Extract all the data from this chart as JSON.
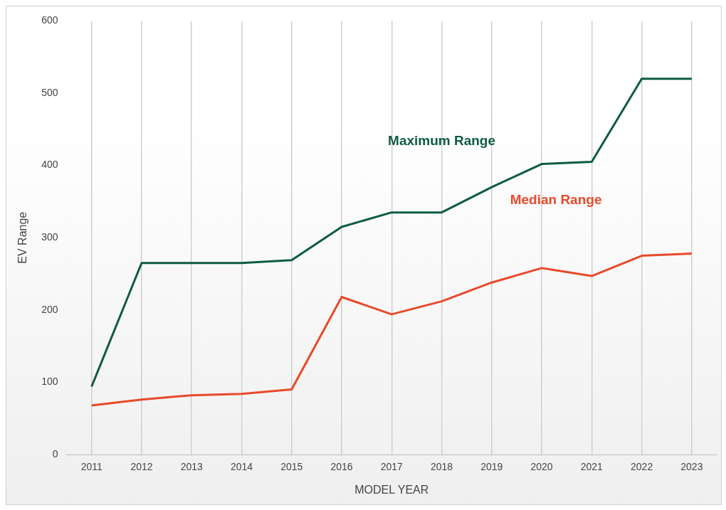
{
  "chart_data": {
    "type": "line",
    "xlabel": "MODEL YEAR",
    "ylabel": "EV Range",
    "categories": [
      "2011",
      "2012",
      "2013",
      "2014",
      "2015",
      "2016",
      "2017",
      "2018",
      "2019",
      "2020",
      "2021",
      "2022",
      "2023"
    ],
    "series": [
      {
        "name": "Maximum Range",
        "color": "#0d5c3e",
        "values": [
          94,
          265,
          265,
          265,
          269,
          315,
          335,
          335,
          370,
          402,
          405,
          520,
          520
        ]
      },
      {
        "name": "Median Range",
        "color": "#e8492a",
        "values": [
          68,
          76,
          82,
          84,
          90,
          218,
          194,
          212,
          238,
          258,
          247,
          275,
          278
        ]
      }
    ],
    "ylim": [
      0,
      600
    ],
    "yticks": [
      0,
      100,
      200,
      300,
      400,
      500,
      600
    ],
    "grid": "x",
    "legend": false,
    "marker": "none",
    "line_style": "solid"
  }
}
